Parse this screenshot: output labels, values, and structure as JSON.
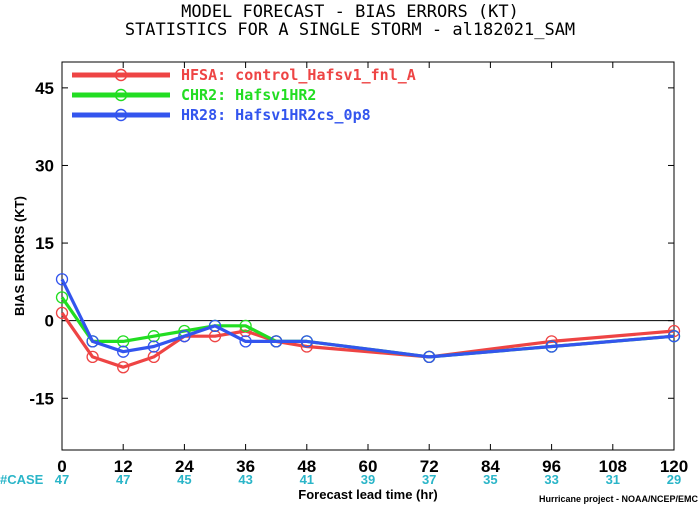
{
  "header": {
    "title_line1": "MODEL FORECAST - BIAS ERRORS (KT)",
    "title_line2": "STATISTICS FOR A SINGLE STORM - al182021_SAM"
  },
  "footer": {
    "case_label": "#CASE",
    "credit": "Hurricane project - NOAA/NCEP/EMC"
  },
  "chart_data": {
    "type": "line",
    "title": "MODEL FORECAST - BIAS ERRORS (KT)",
    "subtitle": "STATISTICS FOR A SINGLE STORM - al182021_SAM",
    "xlabel": "Forecast lead time (hr)",
    "ylabel": "BIAS ERRORS (KT)",
    "xlim": [
      0,
      120
    ],
    "ylim": [
      -25,
      50
    ],
    "x_ticks": [
      0,
      12,
      24,
      36,
      48,
      60,
      72,
      84,
      96,
      108,
      120
    ],
    "y_ticks": [
      -15,
      0,
      15,
      30,
      45
    ],
    "grid": false,
    "zero_line": true,
    "legend_position": "top-left",
    "case_counts": [
      {
        "x": 0,
        "n": "47"
      },
      {
        "x": 12,
        "n": "47"
      },
      {
        "x": 24,
        "n": "45"
      },
      {
        "x": 36,
        "n": "43"
      },
      {
        "x": 48,
        "n": "41"
      },
      {
        "x": 60,
        "n": "39"
      },
      {
        "x": 72,
        "n": "37"
      },
      {
        "x": 84,
        "n": "35"
      },
      {
        "x": 96,
        "n": "33"
      },
      {
        "x": 108,
        "n": "31"
      },
      {
        "x": 120,
        "n": "29"
      }
    ],
    "series": [
      {
        "name": "HFSA: control_Hafsv1_fnl_A",
        "color": "#ee4444",
        "x": [
          0,
          6,
          12,
          18,
          24,
          30,
          36,
          42,
          48,
          72,
          96,
          120
        ],
        "y": [
          1.5,
          -7,
          -9,
          -7,
          -3,
          -3,
          -2,
          -4,
          -5,
          -7,
          -4,
          -2
        ]
      },
      {
        "name": "CHR2: Hafsv1HR2",
        "color": "#22dd22",
        "x": [
          0,
          6,
          12,
          18,
          24,
          30,
          36,
          42,
          48,
          72,
          96,
          120
        ],
        "y": [
          4.5,
          -4,
          -4,
          -3,
          -2,
          -1,
          -1,
          -4,
          -4,
          -7,
          -5,
          -3
        ]
      },
      {
        "name": "HR28: Hafsv1HR2cs_0p8",
        "color": "#3355ee",
        "x": [
          0,
          6,
          12,
          18,
          24,
          30,
          36,
          42,
          48,
          72,
          96,
          120
        ],
        "y": [
          8,
          -4,
          -6,
          -5,
          -3,
          -1,
          -4,
          -4,
          -4,
          -7,
          -5,
          -3
        ]
      }
    ]
  }
}
